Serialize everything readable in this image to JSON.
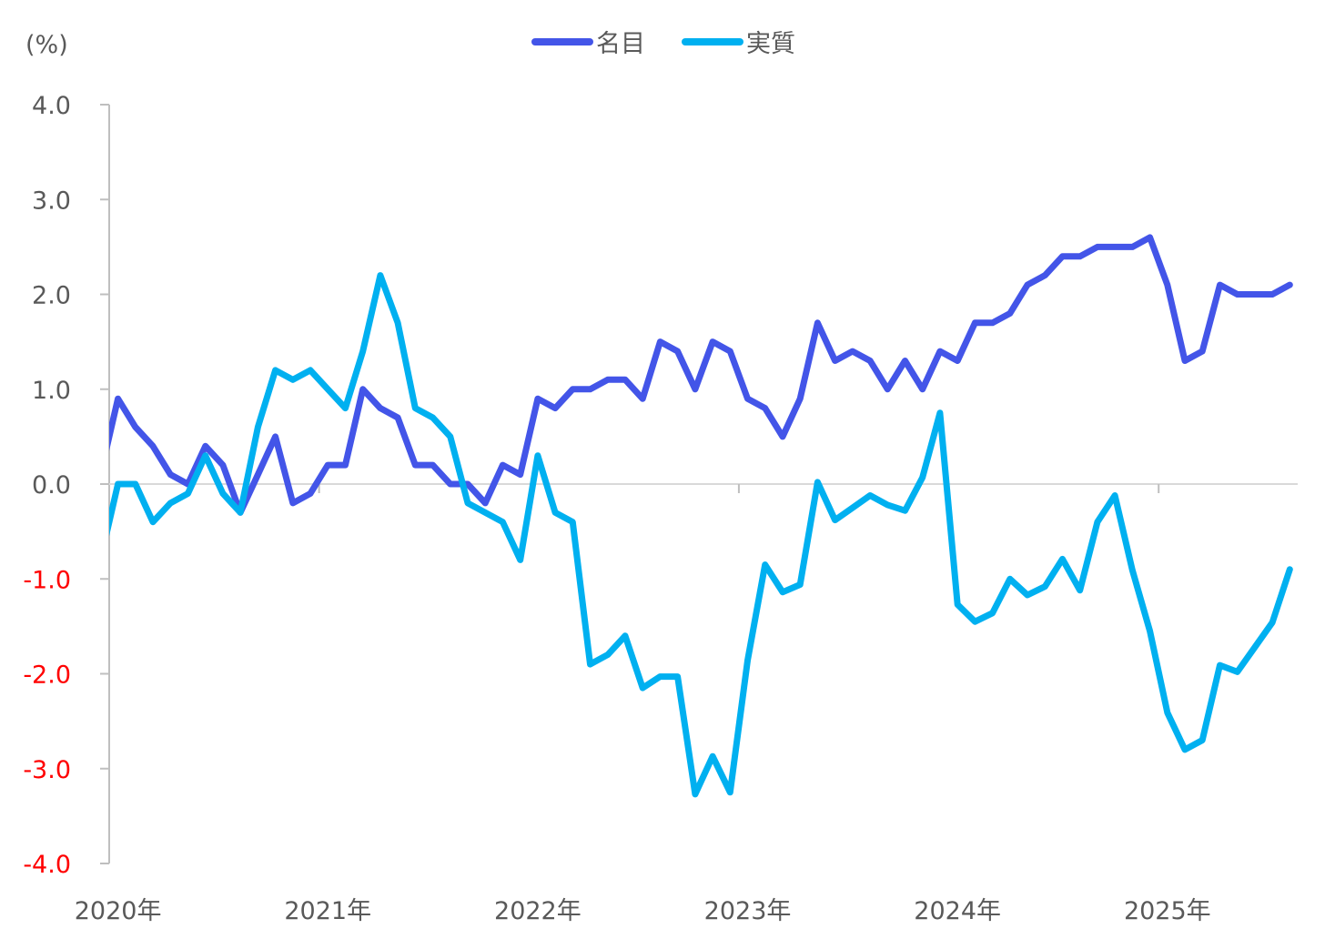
{
  "chart_data": {
    "type": "line",
    "unit_label": "(%)",
    "title": "",
    "xlabel": "",
    "ylabel": "(%)",
    "ylim": [
      -4.0,
      4.0
    ],
    "y_ticks": [
      "4.0",
      "3.0",
      "2.0",
      "1.0",
      "0.0",
      "-1.0",
      "-2.0",
      "-3.0",
      "-4.0"
    ],
    "y_tick_values": [
      4,
      3,
      2,
      1,
      0,
      -1,
      -2,
      -3,
      -4
    ],
    "x_tick_labels": [
      "2020年",
      "2021年",
      "2022年",
      "2023年",
      "2024年",
      "2025年"
    ],
    "x_start": "2020-01",
    "x_end": "2025-08",
    "frequency": "monthly",
    "legend_position": "top",
    "grid": false,
    "colors": {
      "nominal": "#4355E8",
      "real": "#00B0F0",
      "axis": "#BFBFBF",
      "text": "#595959",
      "negative_text": "#FF0000"
    },
    "series": [
      {
        "name": "名目",
        "lead_value": 0.1,
        "values": [
          0.9,
          0.6,
          0.4,
          0.1,
          0.0,
          0.4,
          0.2,
          -0.3,
          0.1,
          0.5,
          -0.2,
          -0.1,
          0.2,
          0.2,
          1.0,
          0.8,
          0.7,
          0.2,
          0.2,
          0.0,
          0.0,
          -0.2,
          0.2,
          0.1,
          0.9,
          0.8,
          1.0,
          1.0,
          1.1,
          1.1,
          0.9,
          1.5,
          1.4,
          1.0,
          1.5,
          1.4,
          0.9,
          0.8,
          0.5,
          0.9,
          1.7,
          1.3,
          1.4,
          1.3,
          1.0,
          1.3,
          1.0,
          1.4,
          1.3,
          1.7,
          1.7,
          1.8,
          2.1,
          2.2,
          2.4,
          2.4,
          2.5,
          2.5,
          2.5,
          2.6,
          2.1,
          1.3,
          1.4,
          2.1,
          2.0,
          2.0,
          2.0,
          2.1
        ]
      },
      {
        "name": "実質",
        "lead_value": -0.8,
        "values": [
          0.0,
          0.0,
          -0.4,
          -0.2,
          -0.1,
          0.3,
          -0.1,
          -0.3,
          0.6,
          1.2,
          1.1,
          1.2,
          1.0,
          0.8,
          1.4,
          2.2,
          1.7,
          0.8,
          0.7,
          0.5,
          -0.2,
          -0.3,
          -0.4,
          -0.8,
          0.3,
          -0.3,
          -0.4,
          -1.9,
          -1.8,
          -1.6,
          -2.15,
          -2.03,
          -2.03,
          -3.27,
          -2.87,
          -3.25,
          -1.86,
          -0.85,
          -1.14,
          -1.06,
          0.02,
          -0.38,
          -0.25,
          -0.12,
          -0.22,
          -0.28,
          0.07,
          0.75,
          -1.27,
          -1.45,
          -1.36,
          -1.0,
          -1.17,
          -1.08,
          -0.79,
          -1.12,
          -0.4,
          -0.12,
          -0.91,
          -1.55,
          -2.41,
          -2.8,
          -2.7,
          -1.91,
          -1.98,
          -1.72,
          -1.46,
          -0.9
        ]
      }
    ]
  }
}
